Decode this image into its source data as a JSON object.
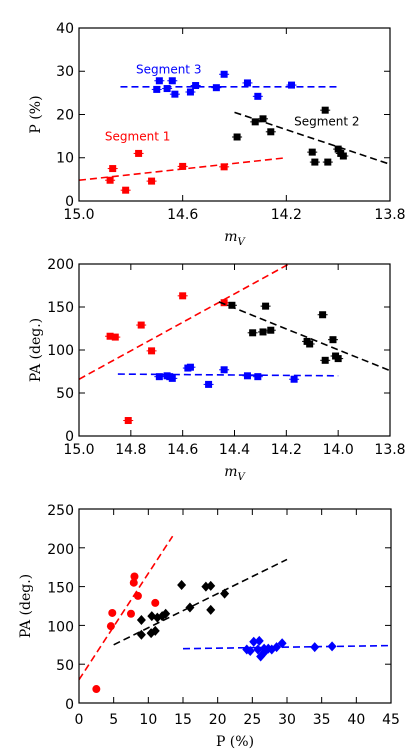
{
  "colors": {
    "seg1": "#ff0000",
    "seg2": "#000000",
    "seg3": "#0000ff"
  },
  "chart_data": [
    {
      "type": "scatter",
      "xlabel": "m_V",
      "ylabel": "P (%)",
      "xlim": [
        15.0,
        13.8
      ],
      "ylim": [
        0,
        40
      ],
      "xticks": [
        "15.0",
        "14.6",
        "14.2",
        "13.8"
      ],
      "xtick_values": [
        15.0,
        14.6,
        14.2,
        13.8
      ],
      "yticks": [
        "0",
        "10",
        "20",
        "30",
        "40"
      ],
      "ytick_values": [
        0,
        10,
        20,
        30,
        40
      ],
      "grid": false,
      "annotations": [
        {
          "text": "Segment 1",
          "x": 14.9,
          "y": 14,
          "color": "#ff0000"
        },
        {
          "text": "Segment 2",
          "x": 14.17,
          "y": 17.5,
          "color": "#000000"
        },
        {
          "text": "Segment 3",
          "x": 14.78,
          "y": 29.5,
          "color": "#0000ff"
        }
      ],
      "series": [
        {
          "color": "#ff0000",
          "marker": "square",
          "points": [
            [
              14.88,
              4.8
            ],
            [
              14.87,
              7.5
            ],
            [
              14.82,
              2.5
            ],
            [
              14.77,
              11.0
            ],
            [
              14.72,
              4.6
            ],
            [
              14.6,
              8.0
            ],
            [
              14.44,
              7.9
            ]
          ],
          "fit": [
            [
              15.0,
              4.8
            ],
            [
              14.2,
              10.0
            ]
          ]
        },
        {
          "color": "#000000",
          "marker": "square",
          "points": [
            [
              14.39,
              14.8
            ],
            [
              14.32,
              18.3
            ],
            [
              14.29,
              19.0
            ],
            [
              14.26,
              16.0
            ],
            [
              14.1,
              11.3
            ],
            [
              14.09,
              9.0
            ],
            [
              14.05,
              21.0
            ],
            [
              14.04,
              9.0
            ],
            [
              14.0,
              12.0
            ],
            [
              13.99,
              11.0
            ],
            [
              13.98,
              10.4
            ]
          ],
          "fit": [
            [
              14.4,
              20.5
            ],
            [
              13.8,
              8.5
            ]
          ]
        },
        {
          "color": "#0000ff",
          "marker": "square",
          "points": [
            [
              14.7,
              25.8
            ],
            [
              14.69,
              27.8
            ],
            [
              14.66,
              26.0
            ],
            [
              14.64,
              27.8
            ],
            [
              14.63,
              24.7
            ],
            [
              14.57,
              25.2
            ],
            [
              14.55,
              26.7
            ],
            [
              14.47,
              26.2
            ],
            [
              14.44,
              29.3
            ],
            [
              14.35,
              27.3
            ],
            [
              14.31,
              24.2
            ],
            [
              14.18,
              26.8
            ]
          ],
          "fit": [
            [
              14.84,
              26.4
            ],
            [
              14.0,
              26.4
            ]
          ]
        }
      ]
    },
    {
      "type": "scatter",
      "xlabel": "m_V",
      "ylabel": "PA (deg.)",
      "xlim": [
        15.0,
        13.8
      ],
      "ylim": [
        0,
        200
      ],
      "xticks": [
        "15.0",
        "14.8",
        "14.6",
        "14.4",
        "14.2",
        "14.0",
        "13.8"
      ],
      "xtick_values": [
        15.0,
        14.8,
        14.6,
        14.4,
        14.2,
        14.0,
        13.8
      ],
      "yticks": [
        "0",
        "50",
        "100",
        "150",
        "200"
      ],
      "ytick_values": [
        0,
        50,
        100,
        150,
        200
      ],
      "grid": false,
      "series": [
        {
          "color": "#ff0000",
          "marker": "square",
          "points": [
            [
              14.88,
              116
            ],
            [
              14.86,
              115
            ],
            [
              14.81,
              18
            ],
            [
              14.76,
              129
            ],
            [
              14.72,
              99
            ],
            [
              14.6,
              163
            ],
            [
              14.44,
              155
            ]
          ],
          "fit": [
            [
              15.0,
              66
            ],
            [
              14.19,
              200
            ]
          ]
        },
        {
          "color": "#000000",
          "marker": "square",
          "points": [
            [
              14.41,
              152
            ],
            [
              14.33,
              120
            ],
            [
              14.29,
              121
            ],
            [
              14.28,
              151
            ],
            [
              14.26,
              123
            ],
            [
              14.12,
              110
            ],
            [
              14.11,
              107
            ],
            [
              14.06,
              141
            ],
            [
              14.05,
              88
            ],
            [
              14.02,
              112
            ],
            [
              14.01,
              93
            ],
            [
              14.0,
              90
            ]
          ],
          "fit": [
            [
              14.46,
              156
            ],
            [
              13.8,
              76
            ]
          ]
        },
        {
          "color": "#0000ff",
          "marker": "square",
          "points": [
            [
              14.69,
              69
            ],
            [
              14.66,
              70
            ],
            [
              14.65,
              69
            ],
            [
              14.64,
              67
            ],
            [
              14.58,
              79
            ],
            [
              14.57,
              80
            ],
            [
              14.5,
              60
            ],
            [
              14.44,
              77
            ],
            [
              14.35,
              70
            ],
            [
              14.31,
              69
            ],
            [
              14.17,
              66
            ]
          ],
          "fit": [
            [
              14.85,
              72
            ],
            [
              14.0,
              70
            ]
          ]
        }
      ]
    },
    {
      "type": "scatter",
      "xlabel": "P (%)",
      "ylabel": "PA (deg.)",
      "xlim": [
        0,
        45
      ],
      "ylim": [
        0,
        250
      ],
      "xticks": [
        "0",
        "5",
        "10",
        "15",
        "20",
        "25",
        "30",
        "35",
        "40",
        "45"
      ],
      "xtick_values": [
        0,
        5,
        10,
        15,
        20,
        25,
        30,
        35,
        40,
        45
      ],
      "yticks": [
        "0",
        "50",
        "100",
        "150",
        "200",
        "250"
      ],
      "ytick_values": [
        0,
        50,
        100,
        150,
        200,
        250
      ],
      "grid": false,
      "series": [
        {
          "color": "#ff0000",
          "marker": "circle",
          "points": [
            [
              2.5,
              18
            ],
            [
              4.6,
              99
            ],
            [
              4.8,
              116
            ],
            [
              7.5,
              115
            ],
            [
              7.9,
              155
            ],
            [
              8.0,
              163
            ],
            [
              8.5,
              138
            ],
            [
              11.0,
              129
            ]
          ],
          "fit": [
            [
              0,
              30
            ],
            [
              13.5,
              215
            ]
          ]
        },
        {
          "color": "#000000",
          "marker": "diamond",
          "points": [
            [
              9.0,
              107
            ],
            [
              9.0,
              88
            ],
            [
              10.4,
              90
            ],
            [
              11.0,
              93
            ],
            [
              11.3,
              110
            ],
            [
              12.0,
              112
            ],
            [
              12.5,
              115
            ],
            [
              14.8,
              152
            ],
            [
              16.0,
              123
            ],
            [
              18.3,
              150
            ],
            [
              19.0,
              120
            ],
            [
              19.0,
              151
            ],
            [
              21.0,
              141
            ],
            [
              10.5,
              112
            ]
          ],
          "fit": [
            [
              5.0,
              75
            ],
            [
              30.0,
              185
            ]
          ]
        },
        {
          "color": "#0000ff",
          "marker": "diamond",
          "points": [
            [
              24.2,
              69
            ],
            [
              24.7,
              67
            ],
            [
              25.2,
              79
            ],
            [
              25.8,
              69
            ],
            [
              26.0,
              80
            ],
            [
              26.2,
              60
            ],
            [
              26.7,
              70
            ],
            [
              26.8,
              66
            ],
            [
              27.3,
              70
            ],
            [
              27.8,
              69
            ],
            [
              28.5,
              72
            ],
            [
              29.3,
              77
            ],
            [
              34.0,
              72
            ],
            [
              36.5,
              73
            ]
          ],
          "fit": [
            [
              15.0,
              70
            ],
            [
              45.0,
              74
            ]
          ]
        }
      ]
    }
  ]
}
